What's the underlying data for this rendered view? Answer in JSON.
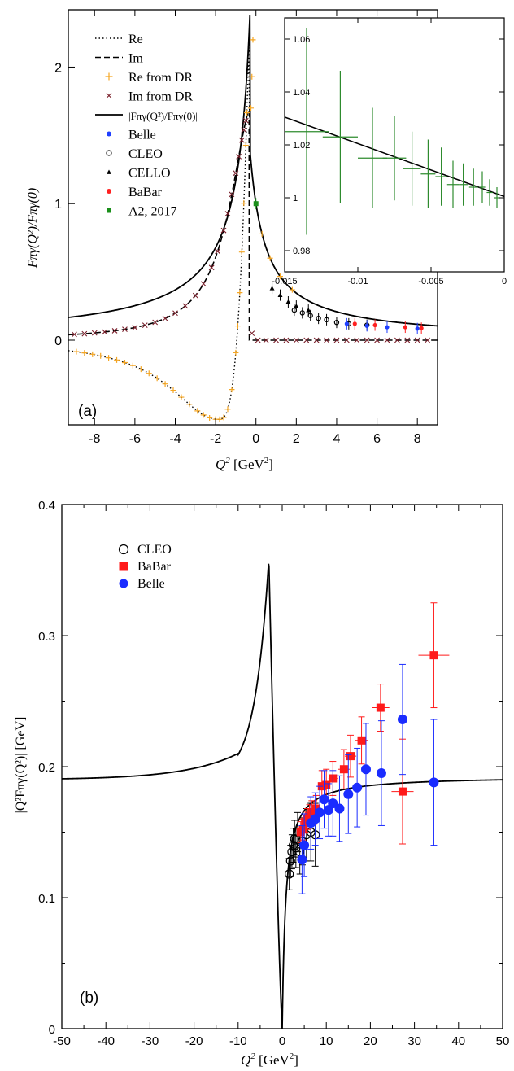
{
  "chart_data": [
    {
      "type": "line",
      "panel_label": "(a)",
      "xlabel_main": "Q",
      "xlabel_sup": "2",
      "xlabel_unit": "[GeV",
      "xlabel_unit_sup": "2",
      "xlabel_close": "]",
      "ylabel": "Fπγ(Q²)/Fπγ(0)",
      "xlim": [
        -9.3,
        9
      ],
      "ylim": [
        -0.62,
        2.42
      ],
      "xticks": [
        -8,
        -6,
        -4,
        -2,
        0,
        2,
        4,
        6,
        8
      ],
      "yticks": [
        0,
        1,
        2
      ],
      "legend": [
        {
          "label": "Re",
          "style": "dotted"
        },
        {
          "label": "Im",
          "style": "dashed"
        },
        {
          "label": "Re from DR",
          "style": "plus",
          "color": "#f5a623"
        },
        {
          "label": "Im from DR",
          "style": "cross",
          "color": "#7a1f2b"
        },
        {
          "label": "|Fπγ(Q²)/Fπγ(0)|",
          "style": "solid"
        },
        {
          "label": "Belle",
          "style": "dot",
          "color": "#1f3fff"
        },
        {
          "label": "CLEO",
          "style": "circle",
          "color": "#000000"
        },
        {
          "label": "CELLO",
          "style": "triangle",
          "color": "#000000"
        },
        {
          "label": "BaBar",
          "style": "dot",
          "color": "#ff2020"
        },
        {
          "label": "A2, 2017",
          "style": "square",
          "color": "#1a8f1a"
        }
      ],
      "series": [
        {
          "name": "CELLO",
          "x": [
            0.8,
            1.2,
            1.6,
            2.0,
            2.6
          ],
          "y": [
            0.38,
            0.33,
            0.28,
            0.25,
            0.22
          ]
        },
        {
          "name": "CLEO",
          "x": [
            1.9,
            2.3,
            2.7,
            3.1,
            3.5,
            4.0,
            4.6,
            5.5
          ],
          "y": [
            0.22,
            0.2,
            0.18,
            0.16,
            0.15,
            0.13,
            0.12,
            0.11
          ]
        },
        {
          "name": "Belle",
          "x": [
            4.5,
            5.5,
            6.5,
            8.0
          ],
          "y": [
            0.12,
            0.105,
            0.095,
            0.085
          ]
        },
        {
          "name": "BaBar",
          "x": [
            4.9,
            5.9,
            7.4,
            8.2
          ],
          "y": [
            0.12,
            0.11,
            0.095,
            0.088
          ]
        },
        {
          "name": "A2, 2017",
          "x": [
            0.0
          ],
          "y": [
            1.0
          ]
        }
      ],
      "inset": {
        "xlim": [
          -0.015,
          0
        ],
        "ylim": [
          0.972,
          1.068
        ],
        "xticks": [
          "-0.015",
          "-0.01",
          "-0.005",
          "0"
        ],
        "yticks": [
          "0.98",
          "1",
          "1.02",
          "1.04",
          "1.06"
        ],
        "points": [
          {
            "x": -0.0135,
            "xerr": 0.0015,
            "y": 1.025,
            "yerr": 0.039
          },
          {
            "x": -0.0112,
            "xerr": 0.0012,
            "y": 1.023,
            "yerr": 0.025
          },
          {
            "x": -0.009,
            "xerr": 0.001,
            "y": 1.015,
            "yerr": 0.019
          },
          {
            "x": -0.0075,
            "xerr": 0.0008,
            "y": 1.015,
            "yerr": 0.016
          },
          {
            "x": -0.0063,
            "xerr": 0.0006,
            "y": 1.011,
            "yerr": 0.014
          },
          {
            "x": -0.0052,
            "xerr": 0.0005,
            "y": 1.009,
            "yerr": 0.013
          },
          {
            "x": -0.0043,
            "xerr": 0.0004,
            "y": 1.008,
            "yerr": 0.011
          },
          {
            "x": -0.0035,
            "xerr": 0.0004,
            "y": 1.005,
            "yerr": 0.009
          },
          {
            "x": -0.0028,
            "xerr": 0.0003,
            "y": 1.005,
            "yerr": 0.008
          },
          {
            "x": -0.0021,
            "xerr": 0.0003,
            "y": 1.004,
            "yerr": 0.007
          },
          {
            "x": -0.0015,
            "xerr": 0.0002,
            "y": 1.004,
            "yerr": 0.006
          },
          {
            "x": -0.001,
            "xerr": 0.0002,
            "y": 1.002,
            "yerr": 0.005
          },
          {
            "x": -0.0005,
            "xerr": 0.0002,
            "y": 1.0,
            "yerr": 0.004
          }
        ],
        "line": {
          "x": [
            -0.015,
            0
          ],
          "y": [
            1.0305,
            1.0005
          ]
        }
      }
    },
    {
      "type": "scatter",
      "panel_label": "(b)",
      "xlabel_main": "Q",
      "xlabel_sup": "2",
      "xlabel_unit": "[GeV",
      "xlabel_unit_sup": "2",
      "xlabel_close": "]",
      "ylabel": "|Q²Fπγ(Q²)| [GeV]",
      "xlim": [
        -50,
        50
      ],
      "ylim": [
        0,
        0.4
      ],
      "xticks": [
        "-50",
        "-40",
        "-30",
        "-20",
        "-10",
        "0",
        "10",
        "20",
        "30",
        "40",
        "50"
      ],
      "yticks": [
        "0",
        "0.1",
        "0.2",
        "0.3",
        "0.4"
      ],
      "legend": [
        {
          "label": "CLEO",
          "style": "circle",
          "color": "#000000"
        },
        {
          "label": "BaBar",
          "style": "square",
          "color": "#ff1a1a"
        },
        {
          "label": "Belle",
          "style": "dot",
          "color": "#1a2cff"
        }
      ],
      "series": [
        {
          "name": "CLEO",
          "points": [
            {
              "x": 1.6,
              "y": 0.118,
              "yerr": 0.012
            },
            {
              "x": 1.9,
              "y": 0.128,
              "yerr": 0.012
            },
            {
              "x": 2.2,
              "y": 0.135,
              "yerr": 0.013
            },
            {
              "x": 2.5,
              "y": 0.14,
              "yerr": 0.013
            },
            {
              "x": 2.8,
              "y": 0.145,
              "yerr": 0.014
            },
            {
              "x": 3.1,
              "y": 0.138,
              "yerr": 0.015
            },
            {
              "x": 3.5,
              "y": 0.15,
              "yerr": 0.015
            },
            {
              "x": 4.0,
              "y": 0.135,
              "yerr": 0.017
            },
            {
              "x": 4.6,
              "y": 0.143,
              "yerr": 0.018
            },
            {
              "x": 5.5,
              "y": 0.148,
              "yerr": 0.02
            },
            {
              "x": 6.5,
              "y": 0.15,
              "yerr": 0.022
            },
            {
              "x": 7.5,
              "y": 0.148,
              "yerr": 0.024
            }
          ]
        },
        {
          "name": "BaBar",
          "points": [
            {
              "x": 4.2,
              "y": 0.15,
              "yerr": 0.008,
              "xerr": 0.5
            },
            {
              "x": 4.7,
              "y": 0.152,
              "yerr": 0.008,
              "xerr": 0.5
            },
            {
              "x": 5.2,
              "y": 0.158,
              "yerr": 0.008,
              "xerr": 0.5
            },
            {
              "x": 5.7,
              "y": 0.16,
              "yerr": 0.008,
              "xerr": 0.5
            },
            {
              "x": 6.2,
              "y": 0.162,
              "yerr": 0.009,
              "xerr": 0.5
            },
            {
              "x": 6.7,
              "y": 0.165,
              "yerr": 0.009,
              "xerr": 0.5
            },
            {
              "x": 7.2,
              "y": 0.165,
              "yerr": 0.009,
              "xerr": 0.5
            },
            {
              "x": 7.7,
              "y": 0.168,
              "yerr": 0.01,
              "xerr": 0.5
            },
            {
              "x": 9.0,
              "y": 0.185,
              "yerr": 0.012,
              "xerr": 1.0
            },
            {
              "x": 10.0,
              "y": 0.186,
              "yerr": 0.012,
              "xerr": 1.0
            },
            {
              "x": 11.5,
              "y": 0.191,
              "yerr": 0.013,
              "xerr": 1.0
            },
            {
              "x": 14.0,
              "y": 0.198,
              "yerr": 0.015,
              "xerr": 1.3
            },
            {
              "x": 15.5,
              "y": 0.208,
              "yerr": 0.016,
              "xerr": 1.3
            },
            {
              "x": 18.0,
              "y": 0.22,
              "yerr": 0.018,
              "xerr": 1.5
            },
            {
              "x": 22.3,
              "y": 0.245,
              "yerr": 0.018,
              "xerr": 2.0
            },
            {
              "x": 27.3,
              "y": 0.181,
              "yerr": 0.04,
              "xerr": 2.5
            },
            {
              "x": 34.4,
              "y": 0.285,
              "yerr": 0.04,
              "xerr": 3.5
            }
          ]
        },
        {
          "name": "Belle",
          "points": [
            {
              "x": 4.5,
              "y": 0.129,
              "yerr": 0.026
            },
            {
              "x": 5.0,
              "y": 0.14,
              "yerr": 0.024
            },
            {
              "x": 6.5,
              "y": 0.157,
              "yerr": 0.02
            },
            {
              "x": 7.5,
              "y": 0.16,
              "yerr": 0.02
            },
            {
              "x": 8.5,
              "y": 0.165,
              "yerr": 0.02
            },
            {
              "x": 9.5,
              "y": 0.175,
              "yerr": 0.022
            },
            {
              "x": 10.5,
              "y": 0.167,
              "yerr": 0.02
            },
            {
              "x": 11.5,
              "y": 0.172,
              "yerr": 0.025
            },
            {
              "x": 13.0,
              "y": 0.168,
              "yerr": 0.025
            },
            {
              "x": 15.0,
              "y": 0.179,
              "yerr": 0.03
            },
            {
              "x": 17.0,
              "y": 0.184,
              "yerr": 0.03
            },
            {
              "x": 19.0,
              "y": 0.198,
              "yerr": 0.035
            },
            {
              "x": 22.5,
              "y": 0.195,
              "yerr": 0.04
            },
            {
              "x": 27.3,
              "y": 0.236,
              "yerr": 0.042
            },
            {
              "x": 34.4,
              "y": 0.188,
              "yerr": 0.048
            }
          ]
        }
      ]
    }
  ]
}
